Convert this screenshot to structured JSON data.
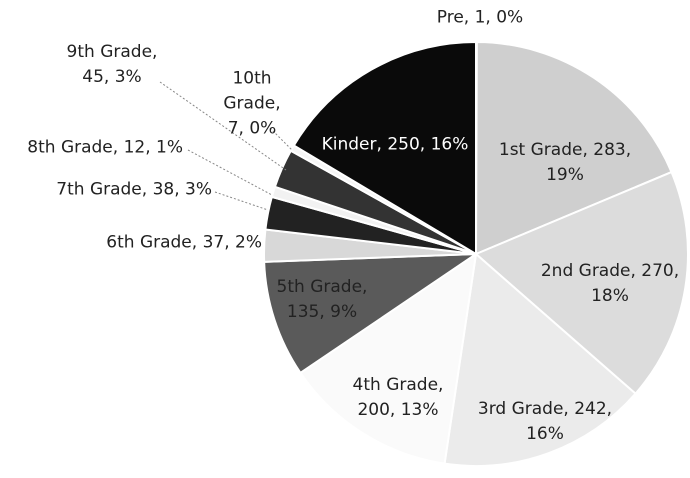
{
  "chart_data": {
    "type": "pie",
    "categories": [
      "Pre",
      "1st Grade",
      "2nd Grade",
      "3rd Grade",
      "4th Grade",
      "5th Grade",
      "6th Grade",
      "7th Grade",
      "8th Grade",
      "9th Grade",
      "10th Grade",
      "Kinder"
    ],
    "values": [
      1,
      283,
      270,
      242,
      200,
      135,
      37,
      38,
      12,
      45,
      7,
      250
    ],
    "value_labels": [
      "Pre, 1, 0%",
      "1st Grade, 283, 19%",
      "2nd Grade, 270, 18%",
      "3rd Grade, 242, 16%",
      "4th Grade, 200, 13%",
      "5th Grade, 135, 9%",
      "6th Grade, 37, 2%",
      "7th Grade, 38, 3%",
      "8th Grade, 12, 1%",
      "9th Grade, 45, 3%",
      "10th Grade, 7, 0%",
      "Kinder, 250, 16%"
    ],
    "colors": [
      "#f4f4f4",
      "#cfcfcf",
      "#dcdcdc",
      "#ebebeb",
      "#fafafa",
      "#5a5a5a",
      "#d8d8d8",
      "#222222",
      "#f2f2f2",
      "#333333",
      "#f6f6f6",
      "#0a0a0a"
    ]
  }
}
